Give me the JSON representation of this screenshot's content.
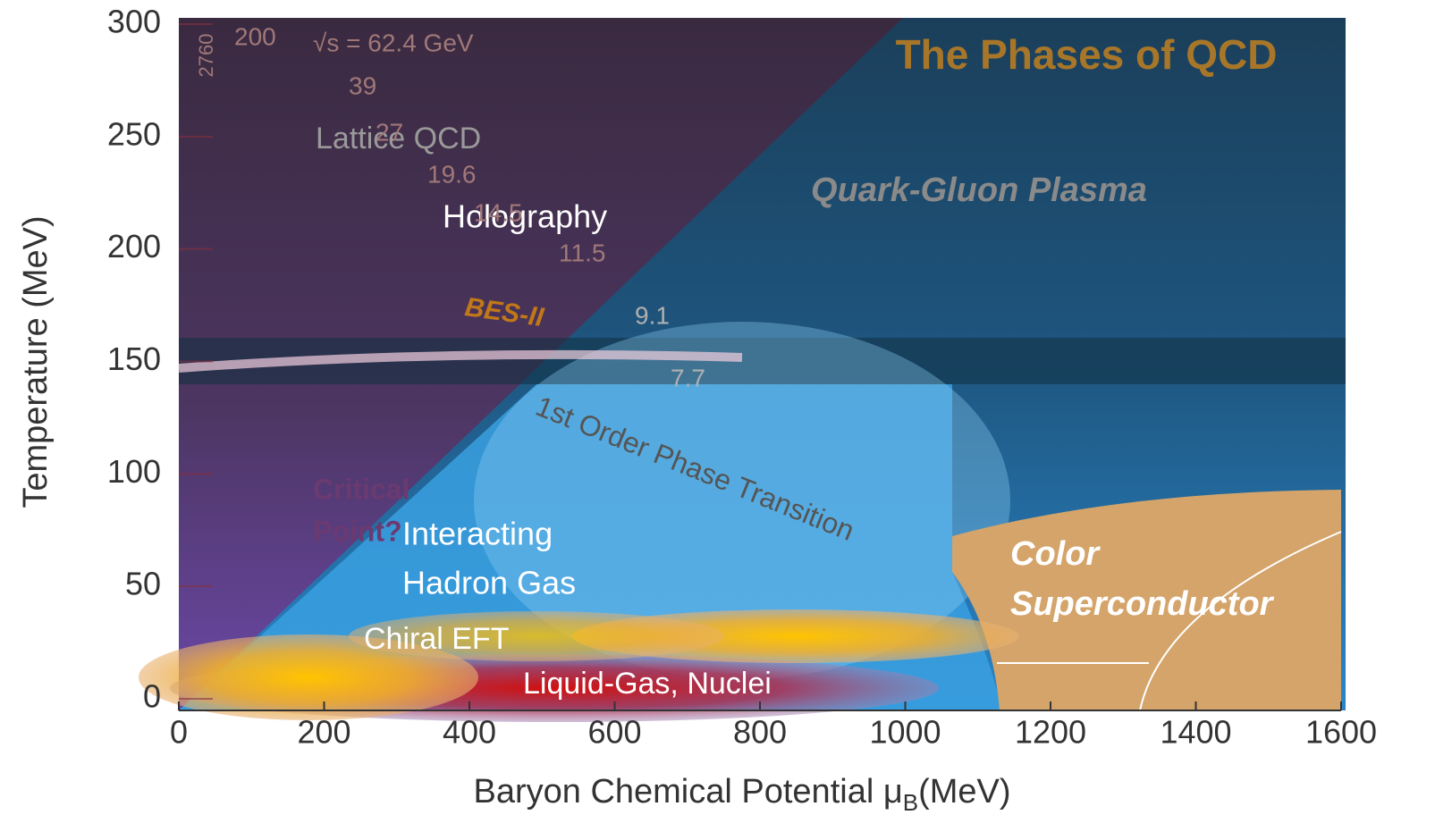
{
  "chart_data": {
    "type": "phase-diagram",
    "title": "The Phases of QCD",
    "x_label": [
      "Baryon Chemical Potential μ",
      "B",
      "(MeV)"
    ],
    "y_label": "Temperature (MeV)",
    "xlim": [
      0,
      1600
    ],
    "xticks": [
      0,
      200,
      400,
      600,
      800,
      1000,
      1200,
      1400,
      1600
    ],
    "ylim": [
      0,
      300
    ],
    "yticks": [
      0,
      50,
      100,
      150,
      200,
      250,
      300
    ],
    "annotations": [
      "Lattice QCD",
      "Holography",
      "Quark-Gluon Plasma",
      "Interacting",
      "Hadron Gas",
      "Color",
      "Superconductor",
      "Chiral EFT",
      "Liquid-Gas, Nuclei",
      "BES-II",
      "1st Order Phase Transition",
      "Critical",
      "Point?",
      "√s = 62.4 GeV",
      "200",
      "2760",
      "39",
      "27",
      "19.6",
      "14.5",
      "11.5",
      "9.1",
      "7.7"
    ]
  }
}
